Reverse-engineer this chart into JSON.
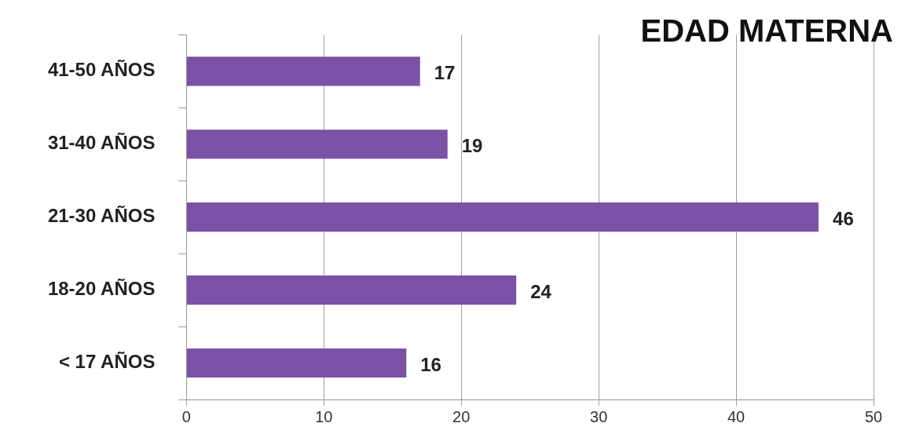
{
  "chart_data": {
    "type": "bar",
    "orientation": "horizontal",
    "title": "EDAD MATERNA",
    "categories": [
      "41-50 AÑOS",
      "31-40 AÑOS",
      "21-30 AÑOS",
      "18-20 AÑOS",
      "< 17 AÑOS"
    ],
    "values": [
      17,
      19,
      46,
      24,
      16
    ],
    "color": "#7b52a6",
    "xlim": [
      0,
      50
    ],
    "xticks": [
      0,
      10,
      20,
      30,
      40,
      50
    ],
    "grid": "x",
    "data_labels": true
  }
}
